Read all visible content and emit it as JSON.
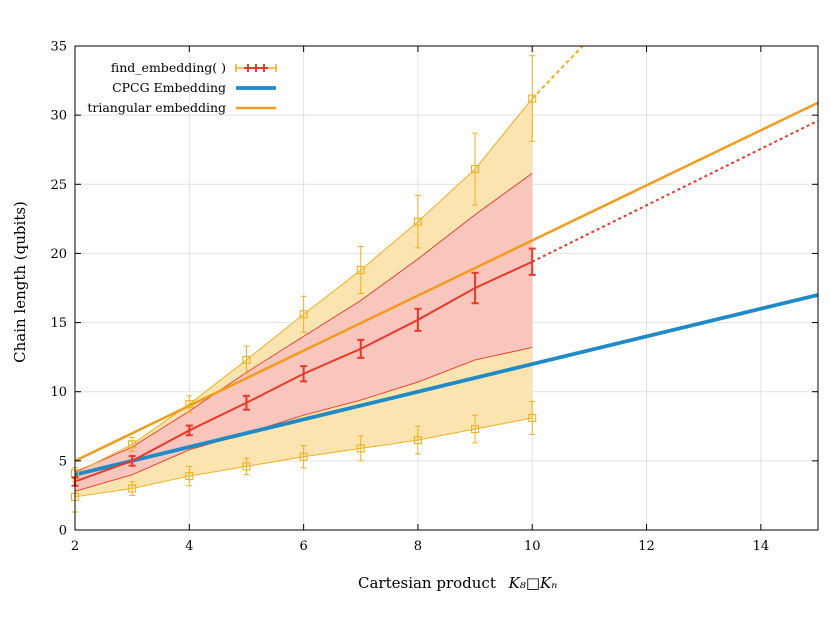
{
  "chart_data": {
    "type": "line",
    "xlabel": "Cartesian product",
    "xlabel_math": "K₈□Kₙ",
    "ylabel": "Chain length (qubits)",
    "xlim": [
      2,
      15
    ],
    "ylim": [
      0,
      35
    ],
    "xticks": [
      2,
      4,
      6,
      8,
      10,
      12,
      14
    ],
    "yticks": [
      0,
      5,
      10,
      15,
      20,
      25,
      30,
      35
    ],
    "grid": true,
    "legend_position": "top-left",
    "colors": {
      "find_embedding": "#e8392a",
      "find_embedding_fill": "#f8c6bd",
      "find_embedding_errorbar": "#e8392a",
      "extreme": "#f0b020",
      "extreme_fill": "#fbe4b0",
      "cpcg": "#1f8ac6",
      "triangular": "#f39b1d"
    },
    "series": [
      {
        "name": "find_embedding( )",
        "kind": "mean_with_errorbars",
        "x": [
          2,
          3,
          4,
          5,
          6,
          7,
          8,
          9,
          10
        ],
        "y": [
          3.5,
          5.0,
          7.2,
          9.2,
          11.3,
          13.1,
          15.2,
          17.5,
          19.4
        ],
        "err": [
          0.3,
          0.35,
          0.35,
          0.5,
          0.55,
          0.65,
          0.8,
          1.1,
          0.95
        ],
        "extrapolation": {
          "x": [
            10,
            15
          ],
          "y": [
            19.4,
            29.6
          ]
        }
      },
      {
        "name": "find_embedding spread (band)",
        "kind": "band",
        "x": [
          2,
          3,
          4,
          5,
          6,
          7,
          8,
          9,
          10
        ],
        "lower": [
          2.8,
          4.0,
          5.8,
          7.0,
          8.3,
          9.4,
          10.7,
          12.3,
          13.2
        ],
        "upper": [
          4.2,
          6.0,
          8.6,
          11.4,
          14.0,
          16.6,
          19.6,
          22.8,
          25.8
        ]
      },
      {
        "name": "find_embedding max",
        "kind": "markers_with_errorbars",
        "x": [
          2,
          3,
          4,
          5,
          6,
          7,
          8,
          9,
          10
        ],
        "y": [
          4.1,
          6.2,
          9.1,
          12.3,
          15.6,
          18.8,
          22.3,
          26.1,
          31.2
        ],
        "err": [
          0.4,
          0.5,
          0.6,
          1.0,
          1.3,
          1.7,
          1.9,
          2.6,
          3.1
        ],
        "extrapolation": {
          "x": [
            10,
            11
          ],
          "y": [
            31.2,
            35.5
          ]
        }
      },
      {
        "name": "find_embedding min",
        "kind": "markers_with_errorbars",
        "x": [
          2,
          3,
          4,
          5,
          6,
          7,
          8,
          9,
          10
        ],
        "y": [
          2.4,
          3.0,
          3.9,
          4.6,
          5.3,
          5.9,
          6.5,
          7.3,
          8.1
        ],
        "err": [
          1.1,
          0.5,
          0.7,
          0.6,
          0.8,
          0.9,
          1.0,
          1.0,
          1.2
        ]
      },
      {
        "name": "CPCG Embedding",
        "kind": "line",
        "x": [
          2,
          15
        ],
        "y": [
          4,
          17
        ]
      },
      {
        "name": "triangular embedding",
        "kind": "line",
        "x": [
          2,
          15
        ],
        "y": [
          5,
          30.9
        ]
      }
    ],
    "legend": [
      {
        "label": "find_embedding( )",
        "style": "errorbar"
      },
      {
        "label": "CPCG Embedding",
        "style": "cpcg"
      },
      {
        "label": "triangular embedding",
        "style": "triangular"
      }
    ]
  }
}
